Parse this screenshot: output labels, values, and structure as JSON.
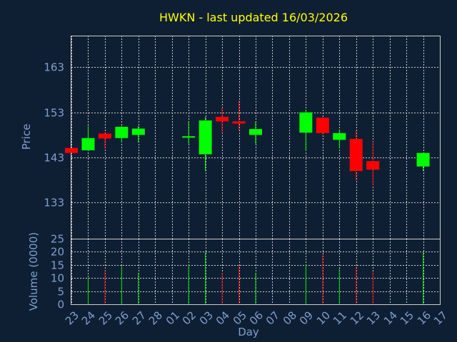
{
  "chart_data": {
    "type": "candlestick",
    "title": "HWKN - last updated 16/03/2026",
    "xlabel": "Day",
    "price_panel": {
      "ylabel": "Price",
      "ylim": [
        125,
        170
      ],
      "yticks": [
        133,
        143,
        153,
        163
      ]
    },
    "volume_panel": {
      "ylabel": "Volume (0000)",
      "ylim": [
        0,
        25
      ],
      "yticks": [
        0,
        5,
        10,
        15,
        20,
        25
      ]
    },
    "x_ticks": [
      "23",
      "24",
      "25",
      "26",
      "27",
      "28",
      "01",
      "02",
      "03",
      "04",
      "05",
      "06",
      "07",
      "08",
      "09",
      "10",
      "11",
      "12",
      "13",
      "14",
      "15",
      "16",
      "17"
    ],
    "candles": [
      {
        "day": "23",
        "open": 145.1,
        "high": 145.1,
        "low": 144.0,
        "close": 144.0
      },
      {
        "day": "24",
        "open": 144.6,
        "high": 150.0,
        "low": 144.6,
        "close": 147.3
      },
      {
        "day": "25",
        "open": 148.3,
        "high": 148.6,
        "low": 145.0,
        "close": 147.2
      },
      {
        "day": "26",
        "open": 147.3,
        "high": 150.0,
        "low": 146.3,
        "close": 149.8
      },
      {
        "day": "27",
        "open": 148.0,
        "high": 150.0,
        "low": 146.3,
        "close": 149.4
      },
      {
        "day": "02",
        "open": 147.4,
        "high": 151.0,
        "low": 146.0,
        "close": 147.7
      },
      {
        "day": "03",
        "open": 143.7,
        "high": 152.0,
        "low": 140.0,
        "close": 151.2
      },
      {
        "day": "04",
        "open": 152.0,
        "high": 154.0,
        "low": 148.4,
        "close": 151.0
      },
      {
        "day": "05",
        "open": 151.0,
        "high": 155.5,
        "low": 149.0,
        "close": 150.5
      },
      {
        "day": "06",
        "open": 148.0,
        "high": 151.0,
        "low": 146.0,
        "close": 149.3
      },
      {
        "day": "09",
        "open": 148.5,
        "high": 153.5,
        "low": 144.5,
        "close": 153.0
      },
      {
        "day": "10",
        "open": 151.8,
        "high": 152.1,
        "low": 148.2,
        "close": 148.4
      },
      {
        "day": "11",
        "open": 146.9,
        "high": 149.0,
        "low": 145.0,
        "close": 148.4
      },
      {
        "day": "12",
        "open": 147.1,
        "high": 149.0,
        "low": 137.9,
        "close": 140.0
      },
      {
        "day": "13",
        "open": 142.2,
        "high": 146.5,
        "low": 136.8,
        "close": 140.3
      },
      {
        "day": "16",
        "open": 141.0,
        "high": 144.0,
        "low": 140.0,
        "close": 144.0
      }
    ],
    "volumes": [
      {
        "day": "24",
        "value": 10,
        "color": "#00e000"
      },
      {
        "day": "25",
        "value": 13,
        "color": "#e00000"
      },
      {
        "day": "26",
        "value": 14.5,
        "color": "#00e000"
      },
      {
        "day": "27",
        "value": 12,
        "color": "#00e000"
      },
      {
        "day": "02",
        "value": 15,
        "color": "#00e000"
      },
      {
        "day": "03",
        "value": 20,
        "color": "#00e000"
      },
      {
        "day": "04",
        "value": 12,
        "color": "#e00000"
      },
      {
        "day": "05",
        "value": 15,
        "color": "#e00000"
      },
      {
        "day": "06",
        "value": 12,
        "color": "#00e000"
      },
      {
        "day": "09",
        "value": 15,
        "color": "#00e000"
      },
      {
        "day": "10",
        "value": 19,
        "color": "#e00000"
      },
      {
        "day": "11",
        "value": 13.5,
        "color": "#00e000"
      },
      {
        "day": "12",
        "value": 14.5,
        "color": "#e00000"
      },
      {
        "day": "13",
        "value": 12.5,
        "color": "#e00000"
      },
      {
        "day": "16",
        "value": 20,
        "color": "#00e000"
      }
    ],
    "colors": {
      "background": "#0f1f33",
      "title": "#ffff00",
      "axis_text": "#7f9fcf",
      "grid": "#cccccc",
      "up": "#00ff00",
      "down": "#ff0000",
      "volume_up": "#00e000",
      "volume_down": "#e00000"
    },
    "grid": true
  }
}
